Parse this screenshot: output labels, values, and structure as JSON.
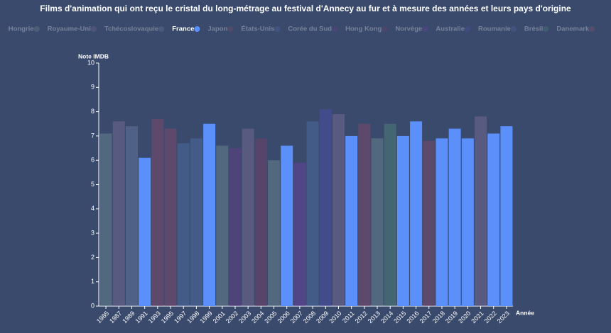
{
  "chart_data": {
    "type": "bar",
    "title": "Films d'animation qui ont reçu le cristal du long-métrage au festival d'Annecy au fur et à mesure des années et leurs pays d'origine",
    "y_label": "Note IMDB",
    "x_label": "Année",
    "highlight": "France",
    "categories": [
      "1985",
      "1987",
      "1989",
      "1991",
      "1993",
      "1995",
      "1997",
      "1998",
      "1999",
      "2001",
      "2002",
      "2003",
      "2004",
      "2005",
      "2006",
      "2007",
      "2008",
      "2009",
      "2010",
      "2011",
      "2012",
      "2013",
      "2014",
      "2015",
      "2016",
      "2017",
      "2018",
      "2019",
      "2020",
      "2021",
      "2022",
      "2023"
    ],
    "ylim": [
      0,
      10
    ],
    "yticks": [
      0,
      1,
      2,
      3,
      4,
      5,
      6,
      7,
      8,
      9,
      10
    ],
    "series": [
      {
        "name": "Hongrie",
        "color": "#6f8f94",
        "values": [
          7.1,
          null,
          null,
          null,
          null,
          null,
          null,
          null,
          null,
          6.6,
          null,
          null,
          null,
          6.0,
          null,
          null,
          null,
          null,
          null,
          null,
          null,
          6.9,
          null,
          null,
          null,
          null,
          null,
          null,
          null,
          null,
          null,
          null
        ]
      },
      {
        "name": "Royaume-Uni",
        "color": "#7e6f9a",
        "values": [
          null,
          7.6,
          null,
          null,
          null,
          null,
          null,
          null,
          null,
          null,
          null,
          7.3,
          null,
          null,
          null,
          null,
          null,
          null,
          7.9,
          null,
          null,
          null,
          null,
          null,
          null,
          null,
          null,
          null,
          null,
          7.8,
          null,
          null
        ]
      },
      {
        "name": "Tchécoslovaquie",
        "color": "#6c7fa8",
        "values": [
          null,
          null,
          7.4,
          null,
          null,
          null,
          null,
          null,
          null,
          null,
          null,
          null,
          null,
          null,
          null,
          null,
          null,
          null,
          null,
          null,
          null,
          null,
          null,
          null,
          null,
          null,
          null,
          null,
          null,
          null,
          null,
          null
        ]
      },
      {
        "name": "France",
        "color": "#5b8ff9",
        "values": [
          null,
          null,
          null,
          6.1,
          null,
          null,
          null,
          null,
          7.5,
          null,
          null,
          null,
          null,
          null,
          6.6,
          null,
          null,
          null,
          null,
          7.0,
          null,
          null,
          null,
          7.0,
          7.6,
          null,
          6.9,
          7.3,
          6.9,
          null,
          7.1,
          7.4
        ]
      },
      {
        "name": "Japon",
        "color": "#8a4a6a",
        "values": [
          null,
          null,
          null,
          null,
          7.7,
          7.3,
          null,
          null,
          null,
          null,
          null,
          null,
          null,
          null,
          null,
          null,
          null,
          null,
          null,
          null,
          7.5,
          null,
          null,
          null,
          null,
          6.8,
          null,
          null,
          null,
          null,
          null,
          null
        ]
      },
      {
        "name": "États-Unis",
        "color": "#4f70a8",
        "values": [
          null,
          null,
          null,
          null,
          null,
          null,
          6.7,
          6.9,
          null,
          null,
          null,
          null,
          null,
          null,
          null,
          null,
          7.6,
          null,
          null,
          null,
          null,
          null,
          null,
          null,
          null,
          null,
          null,
          null,
          null,
          null,
          null,
          null
        ]
      },
      {
        "name": "Corée du Sud",
        "color": "#6a3f8a",
        "values": [
          null,
          null,
          null,
          null,
          null,
          null,
          null,
          null,
          null,
          null,
          6.5,
          null,
          null,
          null,
          null,
          null,
          null,
          null,
          null,
          null,
          null,
          null,
          null,
          null,
          null,
          null,
          null,
          null,
          null,
          null,
          null,
          null
        ]
      },
      {
        "name": "Hong Kong",
        "color": "#7a3f6a",
        "values": [
          null,
          null,
          null,
          null,
          null,
          null,
          null,
          null,
          null,
          null,
          null,
          null,
          6.9,
          null,
          null,
          null,
          null,
          null,
          null,
          null,
          null,
          null,
          null,
          null,
          null,
          null,
          null,
          null,
          null,
          null,
          null,
          null
        ]
      },
      {
        "name": "Norvège",
        "color": "#7040a8",
        "values": [
          null,
          null,
          null,
          null,
          null,
          null,
          null,
          null,
          null,
          null,
          null,
          null,
          null,
          null,
          null,
          5.9,
          null,
          null,
          null,
          null,
          null,
          null,
          null,
          null,
          null,
          null,
          null,
          null,
          null,
          null,
          null,
          null
        ]
      },
      {
        "name": "Australie",
        "color": "#5050b0",
        "values": [
          null,
          null,
          null,
          null,
          null,
          null,
          null,
          null,
          null,
          null,
          null,
          null,
          null,
          null,
          null,
          null,
          null,
          8.1,
          null,
          null,
          null,
          null,
          null,
          null,
          null,
          null,
          null,
          null,
          null,
          null,
          null,
          null
        ]
      },
      {
        "name": "Roumanie",
        "color": "#5a6aa8",
        "values": [
          null,
          null,
          null,
          null,
          null,
          null,
          null,
          null,
          null,
          null,
          null,
          null,
          null,
          null,
          null,
          null,
          null,
          null,
          null,
          null,
          null,
          null,
          null,
          null,
          null,
          null,
          null,
          null,
          null,
          null,
          null,
          null
        ]
      },
      {
        "name": "Brésil",
        "color": "#4f8a7a",
        "values": [
          null,
          null,
          null,
          null,
          null,
          null,
          null,
          null,
          null,
          null,
          null,
          null,
          null,
          null,
          null,
          null,
          null,
          null,
          null,
          null,
          null,
          null,
          7.5,
          null,
          null,
          null,
          null,
          null,
          null,
          null,
          null,
          null
        ]
      },
      {
        "name": "Danemark",
        "color": "#8a5a6a",
        "values": [
          null,
          null,
          null,
          null,
          null,
          null,
          null,
          null,
          null,
          null,
          null,
          null,
          null,
          null,
          null,
          null,
          null,
          null,
          null,
          null,
          null,
          null,
          null,
          null,
          null,
          null,
          null,
          null,
          null,
          null,
          null,
          null
        ]
      }
    ]
  }
}
